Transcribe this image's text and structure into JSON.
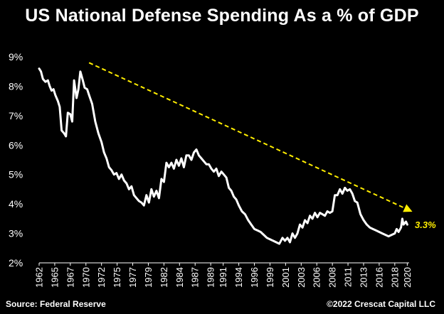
{
  "chart_data": {
    "type": "line",
    "title": "US National Defense Spending As a % of GDP",
    "xlabel": "",
    "ylabel": "",
    "ylim": [
      2,
      9
    ],
    "xlim": [
      1962,
      2021.3
    ],
    "y_ticks": [
      "2%",
      "3%",
      "4%",
      "5%",
      "6%",
      "7%",
      "8%",
      "9%"
    ],
    "y_tick_values": [
      2,
      3,
      4,
      5,
      6,
      7,
      8,
      9
    ],
    "x_ticks": [
      "1962",
      "1965",
      "1967",
      "1970",
      "1972",
      "1975",
      "1977",
      "1979",
      "1982",
      "1984",
      "1987",
      "1989",
      "1991",
      "1994",
      "1996",
      "1999",
      "2001",
      "2003",
      "2006",
      "2008",
      "2011",
      "2013",
      "2016",
      "2018",
      "2020"
    ],
    "x_tick_values": [
      1962,
      1964.5,
      1967,
      1969.5,
      1972,
      1974.5,
      1977,
      1979.5,
      1982,
      1984.5,
      1987,
      1989.5,
      1991.5,
      1994,
      1996.5,
      1999,
      2001.5,
      2004,
      2006.5,
      2009,
      2011.5,
      2014,
      2016.5,
      2019,
      2021
    ],
    "grid": false,
    "series": [
      {
        "color": "#ffffff",
        "x": [
          1962,
          1962.3,
          1962.6,
          1963,
          1963.4,
          1963.7,
          1964,
          1964.3,
          1964.6,
          1965,
          1965.3,
          1965.6,
          1966,
          1966.3,
          1966.6,
          1967,
          1967.3,
          1967.6,
          1968,
          1968.3,
          1968.6,
          1969,
          1969.3,
          1969.7,
          1970,
          1970.5,
          1971,
          1971.5,
          1972,
          1972.4,
          1972.8,
          1973.2,
          1973.6,
          1974,
          1974.4,
          1974.8,
          1975.2,
          1975.6,
          1976,
          1976.4,
          1976.8,
          1977.2,
          1977.6,
          1978,
          1978.4,
          1978.8,
          1979.2,
          1979.6,
          1980,
          1980.4,
          1980.8,
          1981.2,
          1981.6,
          1982,
          1982.4,
          1982.8,
          1983.2,
          1983.6,
          1984,
          1984.4,
          1984.8,
          1985.2,
          1985.6,
          1986,
          1986.4,
          1986.8,
          1987.2,
          1987.6,
          1988,
          1988.4,
          1988.8,
          1989.2,
          1989.6,
          1990,
          1990.4,
          1990.8,
          1991.2,
          1991.6,
          1992,
          1992.4,
          1992.8,
          1993.2,
          1993.6,
          1994,
          1994.5,
          1995,
          1995.5,
          1996,
          1996.5,
          1997,
          1997.5,
          1998,
          1998.5,
          1999,
          1999.5,
          2000,
          2000.5,
          2001,
          2001.4,
          2001.8,
          2002.2,
          2002.6,
          2003,
          2003.4,
          2003.8,
          2004.2,
          2004.6,
          2005,
          2005.4,
          2005.8,
          2006.2,
          2006.6,
          2007,
          2007.4,
          2007.8,
          2008.2,
          2008.6,
          2009,
          2009.4,
          2009.8,
          2010.2,
          2010.6,
          2011,
          2011.4,
          2011.8,
          2012.2,
          2012.6,
          2013,
          2013.5,
          2014,
          2014.5,
          2015,
          2015.5,
          2016,
          2016.5,
          2017,
          2017.5,
          2018,
          2018.5,
          2019,
          2019.3,
          2019.6,
          2020,
          2020.2,
          2020.4,
          2020.6,
          2020.8,
          2021
        ],
        "values": [
          8.6,
          8.5,
          8.25,
          8.15,
          8.2,
          8.0,
          7.85,
          7.9,
          7.7,
          7.5,
          7.3,
          6.5,
          6.4,
          6.3,
          7.1,
          7.05,
          6.8,
          8.2,
          7.6,
          7.9,
          8.5,
          8.2,
          7.95,
          7.9,
          7.7,
          7.4,
          6.8,
          6.4,
          6.1,
          5.75,
          5.55,
          5.25,
          5.15,
          5.0,
          5.05,
          4.85,
          5.0,
          4.8,
          4.7,
          4.5,
          4.6,
          4.3,
          4.2,
          4.1,
          4.05,
          3.95,
          4.3,
          4.05,
          4.5,
          4.25,
          4.45,
          4.2,
          4.85,
          4.75,
          5.4,
          5.25,
          5.4,
          5.2,
          5.5,
          5.3,
          5.55,
          5.25,
          5.65,
          5.65,
          5.5,
          5.75,
          5.85,
          5.65,
          5.55,
          5.45,
          5.35,
          5.35,
          5.2,
          5.1,
          5.2,
          4.95,
          5.1,
          5.0,
          4.9,
          4.55,
          4.45,
          4.25,
          4.15,
          3.95,
          3.75,
          3.65,
          3.45,
          3.3,
          3.15,
          3.1,
          3.05,
          2.95,
          2.85,
          2.8,
          2.75,
          2.7,
          2.65,
          2.85,
          2.75,
          2.85,
          2.7,
          3.0,
          2.85,
          3.0,
          3.3,
          3.2,
          3.45,
          3.35,
          3.6,
          3.5,
          3.7,
          3.55,
          3.7,
          3.65,
          3.6,
          3.75,
          3.7,
          3.75,
          4.3,
          4.3,
          4.5,
          4.35,
          4.55,
          4.45,
          4.5,
          4.35,
          4.1,
          4.05,
          3.65,
          3.45,
          3.3,
          3.2,
          3.15,
          3.1,
          3.05,
          3.0,
          2.95,
          2.9,
          2.95,
          3.0,
          3.15,
          3.05,
          3.2,
          3.5,
          3.3,
          3.35,
          3.4,
          3.3
        ]
      }
    ],
    "trendline": {
      "x": [
        1970,
        2021.2
      ],
      "y": [
        8.8,
        3.8
      ],
      "color": "#ffee00",
      "style": "dashed"
    },
    "annotation": {
      "text": "3.3%",
      "x": 2021.3,
      "y": 3.3
    }
  },
  "footer": {
    "source": "Source: Federal Reserve",
    "copyright": "©2022 Crescat Capital LLC"
  }
}
